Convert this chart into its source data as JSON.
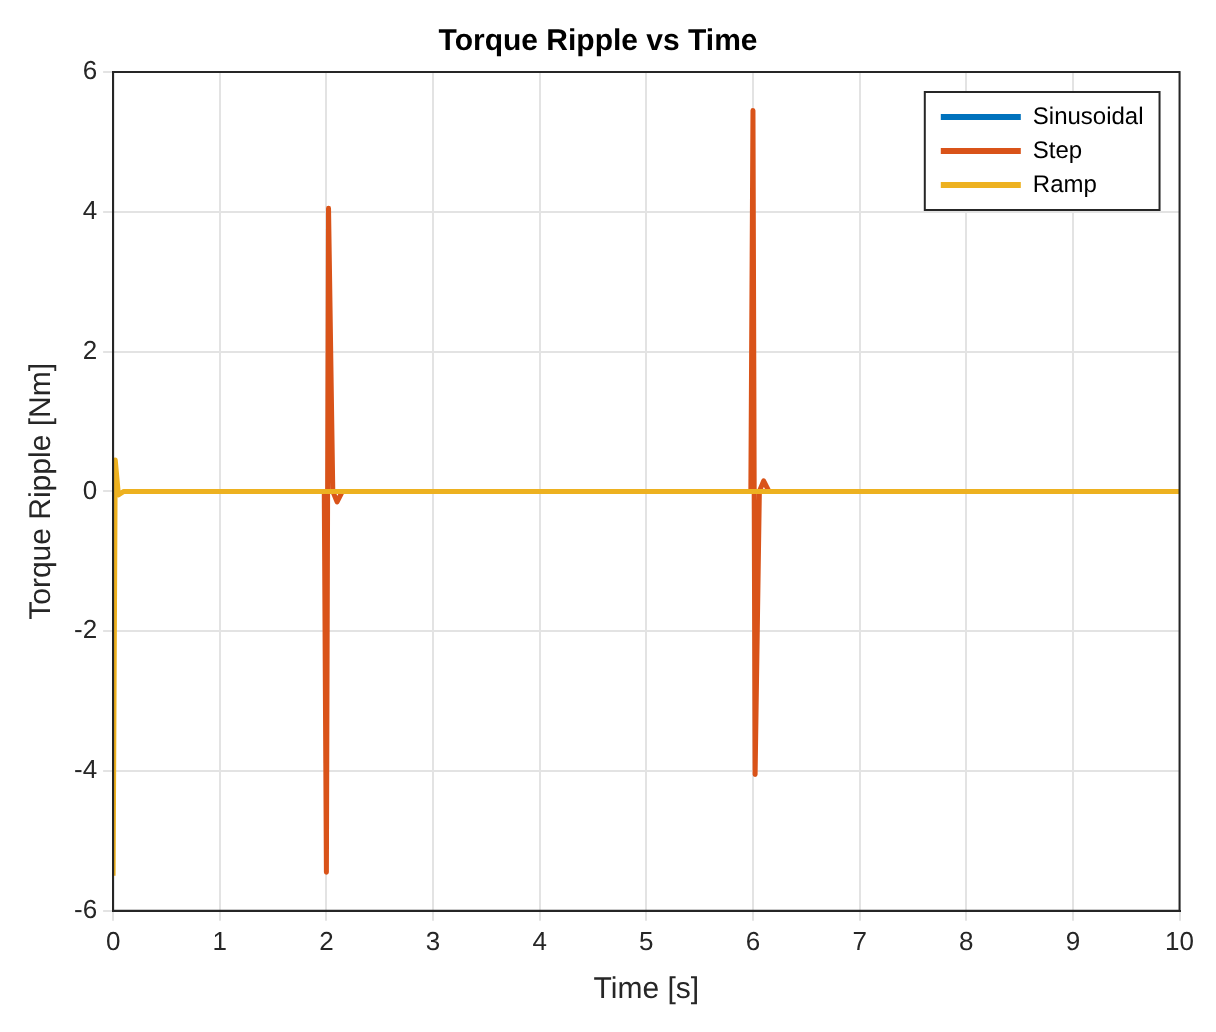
{
  "chart_data": {
    "type": "line",
    "title": "Torque Ripple vs Time",
    "xlabel": "Time [s]",
    "ylabel": "Torque Ripple [Nm]",
    "xlim": [
      0,
      10
    ],
    "xticks": [
      0,
      1,
      2,
      3,
      4,
      5,
      6,
      7,
      8,
      9,
      10
    ],
    "ylim": [
      -6,
      6
    ],
    "yticks": [
      -6,
      -4,
      -2,
      0,
      2,
      4,
      6
    ],
    "grid": true,
    "legend": "top right",
    "marker": "none",
    "line_style": "solid",
    "series": [
      {
        "name": "Sinusoidal",
        "color": "#0072bd"
      },
      {
        "name": "Step",
        "color": "#d95319",
        "x": [
          1.98,
          2.0,
          2.02,
          2.06,
          2.1,
          2.15,
          5.98,
          6.0,
          6.02,
          6.06,
          6.1,
          6.15
        ],
        "values": [
          0,
          -5.45,
          4.05,
          0,
          -0.15,
          0,
          0,
          5.45,
          -4.05,
          0,
          0.15,
          0
        ]
      },
      {
        "name": "Ramp",
        "color": "#edb120",
        "x": [
          0,
          0.02,
          0.05,
          0.1,
          10
        ],
        "values": [
          -5.5,
          0.45,
          -0.05,
          0,
          0
        ]
      }
    ]
  }
}
